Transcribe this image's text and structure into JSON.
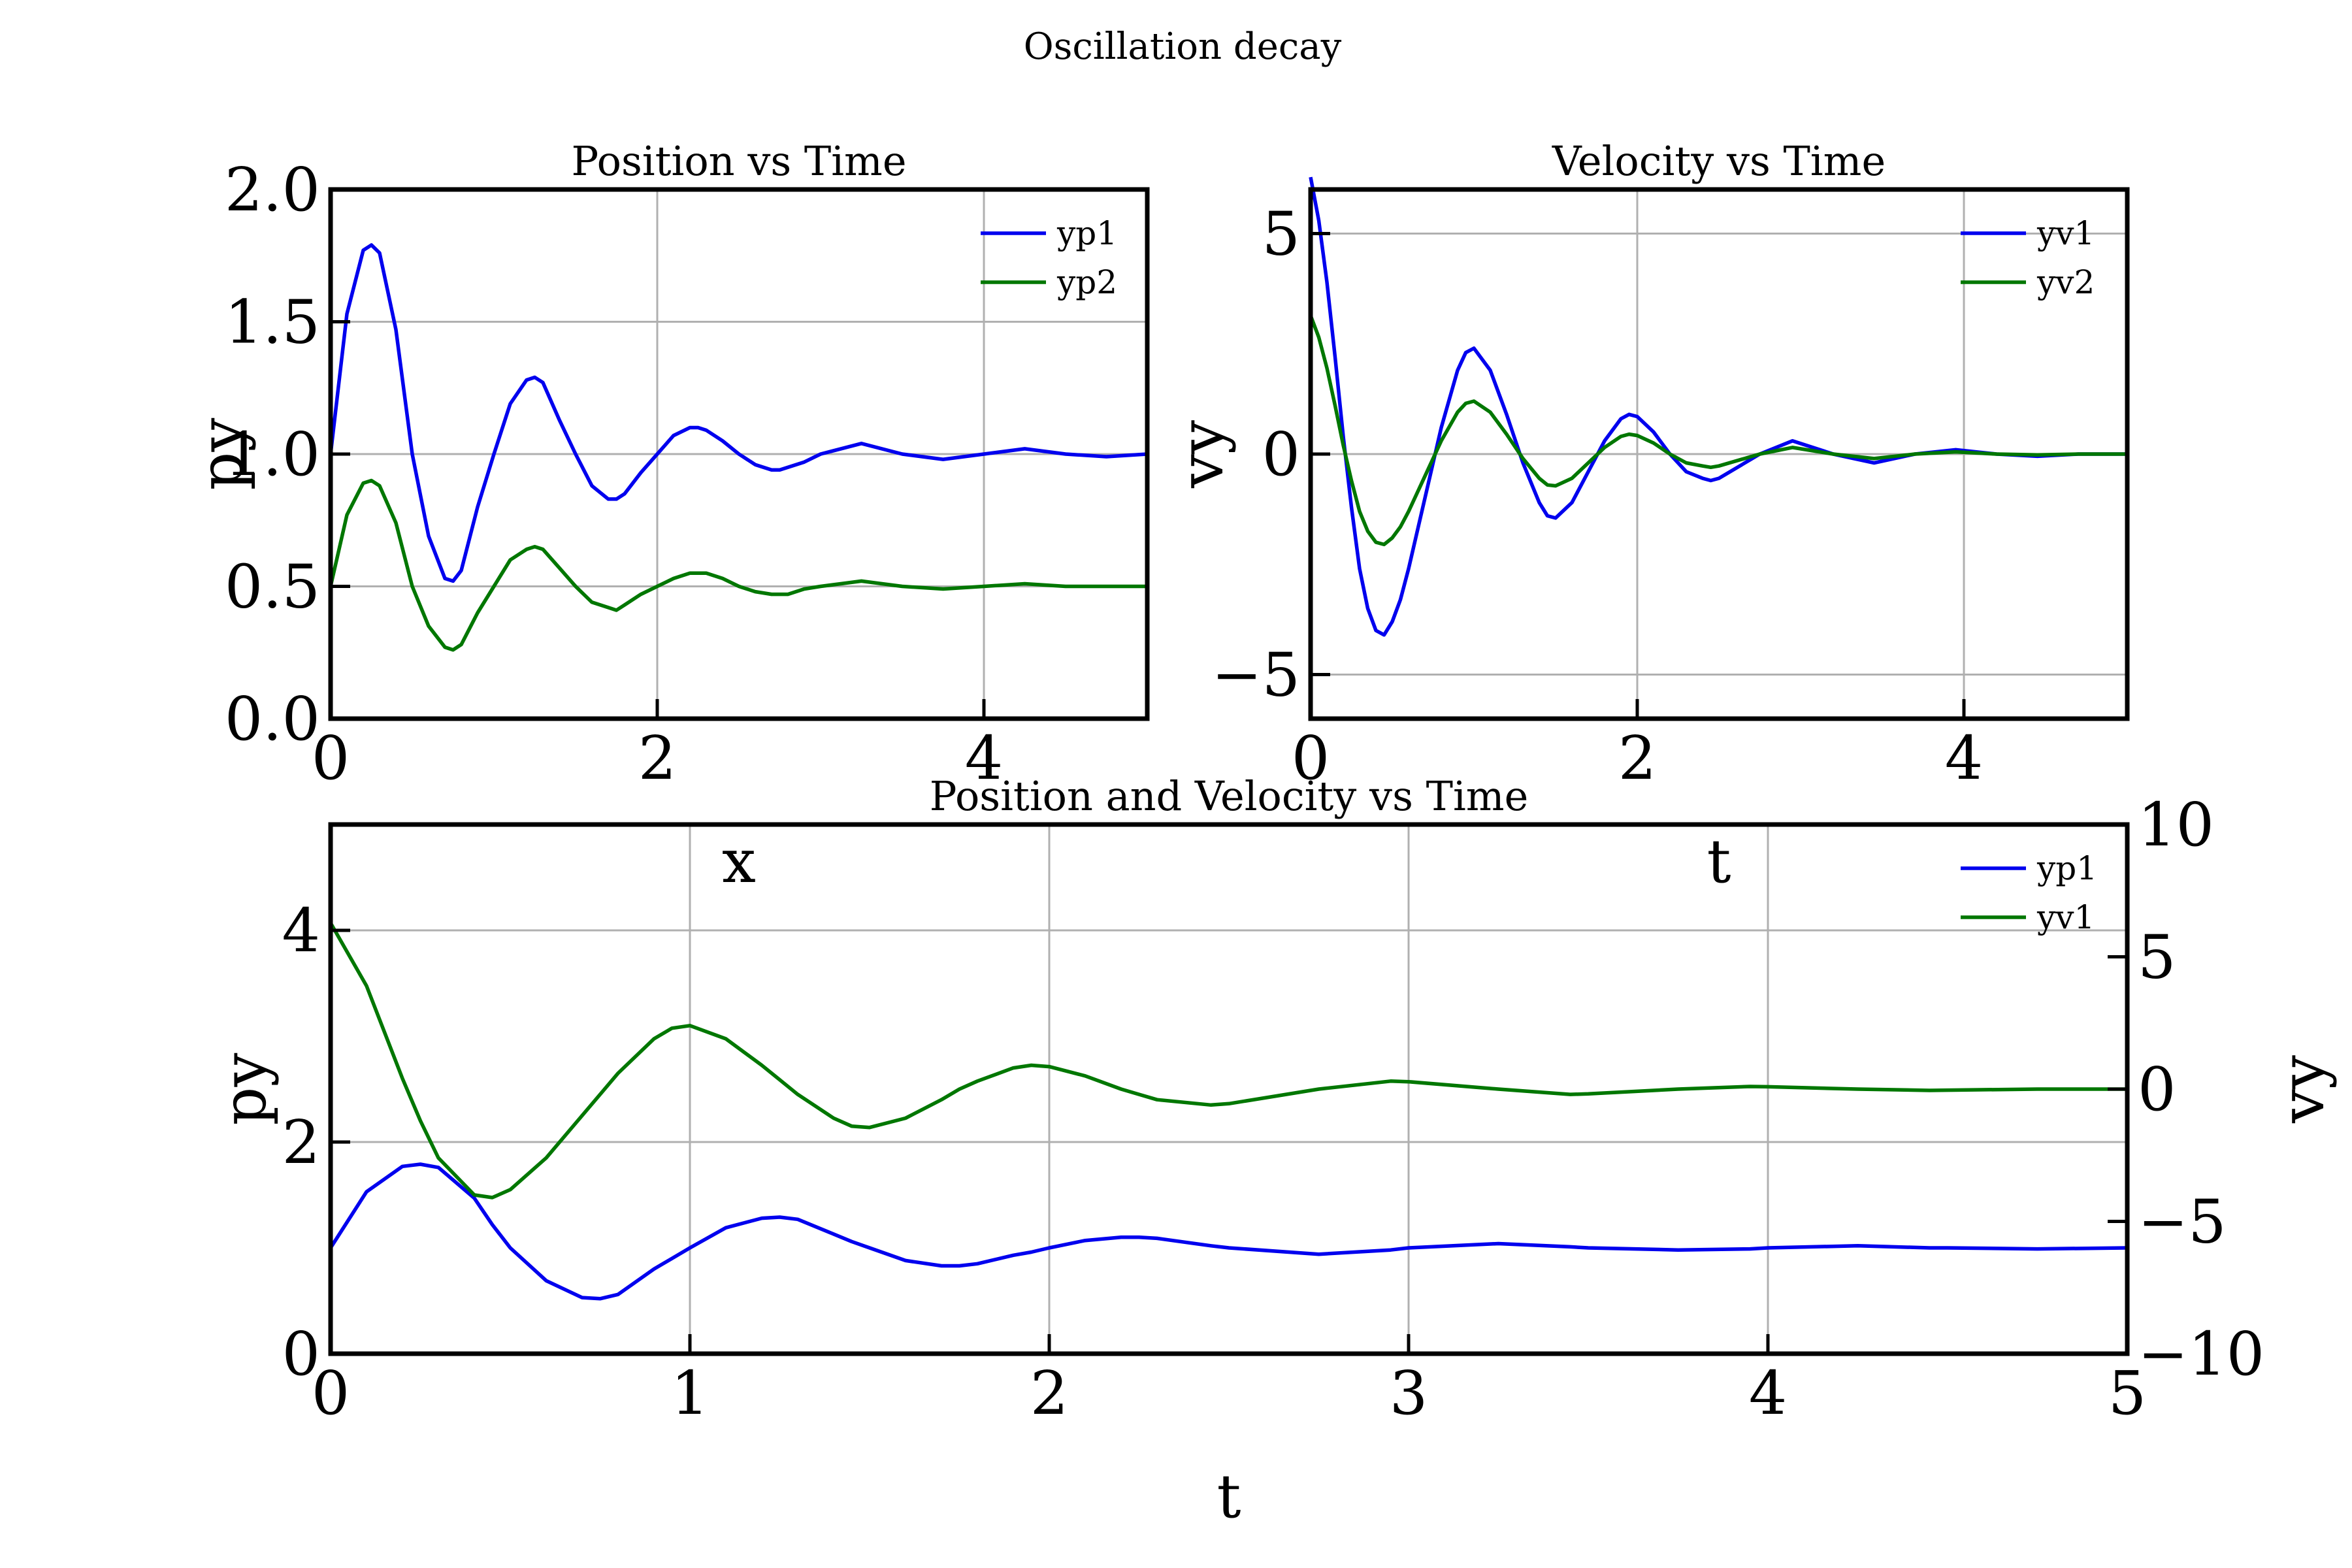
{
  "figure": {
    "title": "Oscillation decay"
  },
  "colors": {
    "series1": "#0000ee",
    "series2": "#007700"
  },
  "chart_data": [
    {
      "type": "line",
      "title": "Position vs Time",
      "xlabel": "x",
      "ylabel": "py",
      "xlim": [
        0,
        5
      ],
      "ylim": [
        0,
        2
      ],
      "xticks": [
        "0",
        "2",
        "4"
      ],
      "yticks": [
        "0.0",
        "0.5",
        "1.0",
        "1.5",
        "2.0"
      ],
      "grid": true,
      "legend_position": "top-right",
      "x": [
        0.0,
        0.1,
        0.2,
        0.25,
        0.3,
        0.4,
        0.5,
        0.6,
        0.7,
        0.75,
        0.8,
        0.9,
        1.0,
        1.1,
        1.2,
        1.25,
        1.3,
        1.4,
        1.5,
        1.6,
        1.7,
        1.75,
        1.8,
        1.9,
        2.0,
        2.1,
        2.2,
        2.25,
        2.3,
        2.4,
        2.5,
        2.6,
        2.7,
        2.75,
        2.8,
        2.9,
        3.0,
        3.25,
        3.5,
        3.75,
        4.0,
        4.25,
        4.5,
        4.75,
        5.0
      ],
      "series": [
        {
          "name": "yp1",
          "values": [
            1.0,
            1.53,
            1.77,
            1.79,
            1.76,
            1.47,
            1.0,
            0.69,
            0.53,
            0.52,
            0.56,
            0.8,
            1.0,
            1.19,
            1.28,
            1.29,
            1.27,
            1.13,
            1.0,
            0.88,
            0.83,
            0.83,
            0.85,
            0.93,
            1.0,
            1.07,
            1.1,
            1.1,
            1.09,
            1.05,
            1.0,
            0.96,
            0.94,
            0.94,
            0.95,
            0.97,
            1.0,
            1.04,
            1.0,
            0.98,
            1.0,
            1.02,
            1.0,
            0.99,
            1.0
          ]
        },
        {
          "name": "yp2",
          "values": [
            0.5,
            0.77,
            0.89,
            0.9,
            0.88,
            0.74,
            0.5,
            0.35,
            0.27,
            0.26,
            0.28,
            0.4,
            0.5,
            0.6,
            0.64,
            0.65,
            0.64,
            0.57,
            0.5,
            0.44,
            0.42,
            0.41,
            0.43,
            0.47,
            0.5,
            0.53,
            0.55,
            0.55,
            0.55,
            0.53,
            0.5,
            0.48,
            0.47,
            0.47,
            0.47,
            0.49,
            0.5,
            0.52,
            0.5,
            0.49,
            0.5,
            0.51,
            0.5,
            0.5,
            0.5
          ]
        }
      ]
    },
    {
      "type": "line",
      "title": "Velocity vs Time",
      "xlabel": "t",
      "ylabel": "vy",
      "xlim": [
        0,
        5
      ],
      "ylim": [
        -6,
        6
      ],
      "xticks": [
        "0",
        "2",
        "4"
      ],
      "yticks": [
        "−5",
        "0",
        "5"
      ],
      "ytick_values": [
        -5,
        0,
        5
      ],
      "grid": true,
      "legend_position": "top-right",
      "x": [
        0.0,
        0.05,
        0.1,
        0.15,
        0.2,
        0.25,
        0.3,
        0.35,
        0.4,
        0.45,
        0.5,
        0.55,
        0.6,
        0.7,
        0.8,
        0.9,
        0.95,
        1.0,
        1.1,
        1.2,
        1.3,
        1.4,
        1.45,
        1.5,
        1.6,
        1.7,
        1.8,
        1.9,
        1.95,
        2.0,
        2.1,
        2.2,
        2.3,
        2.4,
        2.45,
        2.5,
        2.75,
        2.95,
        3.2,
        3.45,
        3.7,
        3.95,
        4.2,
        4.45,
        4.7,
        5.0
      ],
      "series": [
        {
          "name": "yv1",
          "values": [
            6.28,
            5.3,
            3.9,
            2.2,
            0.4,
            -1.2,
            -2.6,
            -3.5,
            -4.0,
            -4.1,
            -3.8,
            -3.3,
            -2.6,
            -1.0,
            0.6,
            1.9,
            2.3,
            2.4,
            1.9,
            0.9,
            -0.2,
            -1.1,
            -1.4,
            -1.45,
            -1.1,
            -0.4,
            0.3,
            0.8,
            0.9,
            0.85,
            0.5,
            0.0,
            -0.4,
            -0.55,
            -0.6,
            -0.55,
            0.0,
            0.3,
            0.0,
            -0.2,
            0.0,
            0.1,
            0.0,
            -0.05,
            0.0,
            0.0
          ]
        },
        {
          "name": "yv2",
          "values": [
            3.14,
            2.65,
            1.95,
            1.1,
            0.2,
            -0.6,
            -1.3,
            -1.75,
            -2.0,
            -2.05,
            -1.9,
            -1.65,
            -1.3,
            -0.5,
            0.3,
            0.95,
            1.15,
            1.2,
            0.95,
            0.45,
            -0.1,
            -0.55,
            -0.7,
            -0.72,
            -0.55,
            -0.2,
            0.15,
            0.4,
            0.45,
            0.42,
            0.25,
            0.0,
            -0.2,
            -0.27,
            -0.3,
            -0.27,
            0.0,
            0.15,
            0.0,
            -0.1,
            0.0,
            0.05,
            0.0,
            -0.02,
            0.0,
            0.0
          ]
        }
      ]
    },
    {
      "type": "line",
      "title": "Position and Velocity vs Time",
      "xlabel": "t",
      "ylabel": "py",
      "ylabel_right": "vy",
      "xlim": [
        0,
        5
      ],
      "ylim": [
        0,
        5
      ],
      "ylim_right": [
        -10,
        10
      ],
      "xticks": [
        "0",
        "1",
        "2",
        "3",
        "4",
        "5"
      ],
      "yticks": [
        "0",
        "2",
        "4"
      ],
      "ytick_values": [
        0,
        2,
        4
      ],
      "yticks_right": [
        "−10",
        "−5",
        "0",
        "5",
        "10"
      ],
      "ytick_values_right": [
        -10,
        -5,
        0,
        5,
        10
      ],
      "grid": true,
      "legend_position": "top-right",
      "x": [
        0.0,
        0.1,
        0.2,
        0.25,
        0.3,
        0.4,
        0.45,
        0.5,
        0.6,
        0.7,
        0.75,
        0.8,
        0.9,
        0.95,
        1.0,
        1.1,
        1.2,
        1.25,
        1.3,
        1.4,
        1.45,
        1.5,
        1.6,
        1.7,
        1.75,
        1.8,
        1.9,
        1.95,
        2.0,
        2.1,
        2.2,
        2.25,
        2.3,
        2.45,
        2.5,
        2.75,
        2.95,
        3.0,
        3.25,
        3.45,
        3.5,
        3.75,
        3.95,
        4.0,
        4.25,
        4.45,
        4.5,
        4.75,
        5.0
      ],
      "series": [
        {
          "name": "yp1",
          "axis": "left",
          "values": [
            1.0,
            1.53,
            1.77,
            1.79,
            1.76,
            1.47,
            1.22,
            1.0,
            0.69,
            0.53,
            0.52,
            0.56,
            0.8,
            0.9,
            1.0,
            1.19,
            1.28,
            1.29,
            1.27,
            1.13,
            1.06,
            1.0,
            0.88,
            0.83,
            0.83,
            0.85,
            0.93,
            0.96,
            1.0,
            1.07,
            1.1,
            1.1,
            1.09,
            1.02,
            1.0,
            0.94,
            0.98,
            1.0,
            1.04,
            1.01,
            1.0,
            0.98,
            0.99,
            1.0,
            1.02,
            1.0,
            1.0,
            0.99,
            1.0
          ]
        },
        {
          "name": "yv1",
          "axis": "right",
          "values": [
            6.28,
            3.9,
            0.4,
            -1.2,
            -2.6,
            -4.0,
            -4.1,
            -3.8,
            -2.6,
            -1.0,
            -0.2,
            0.6,
            1.9,
            2.3,
            2.4,
            1.9,
            0.9,
            0.35,
            -0.2,
            -1.1,
            -1.4,
            -1.45,
            -1.1,
            -0.4,
            0.0,
            0.3,
            0.8,
            0.9,
            0.85,
            0.5,
            0.0,
            -0.2,
            -0.4,
            -0.6,
            -0.55,
            0.0,
            0.3,
            0.28,
            0.0,
            -0.2,
            -0.18,
            0.0,
            0.1,
            0.09,
            0.0,
            -0.05,
            -0.04,
            0.0,
            0.0
          ]
        }
      ]
    }
  ]
}
